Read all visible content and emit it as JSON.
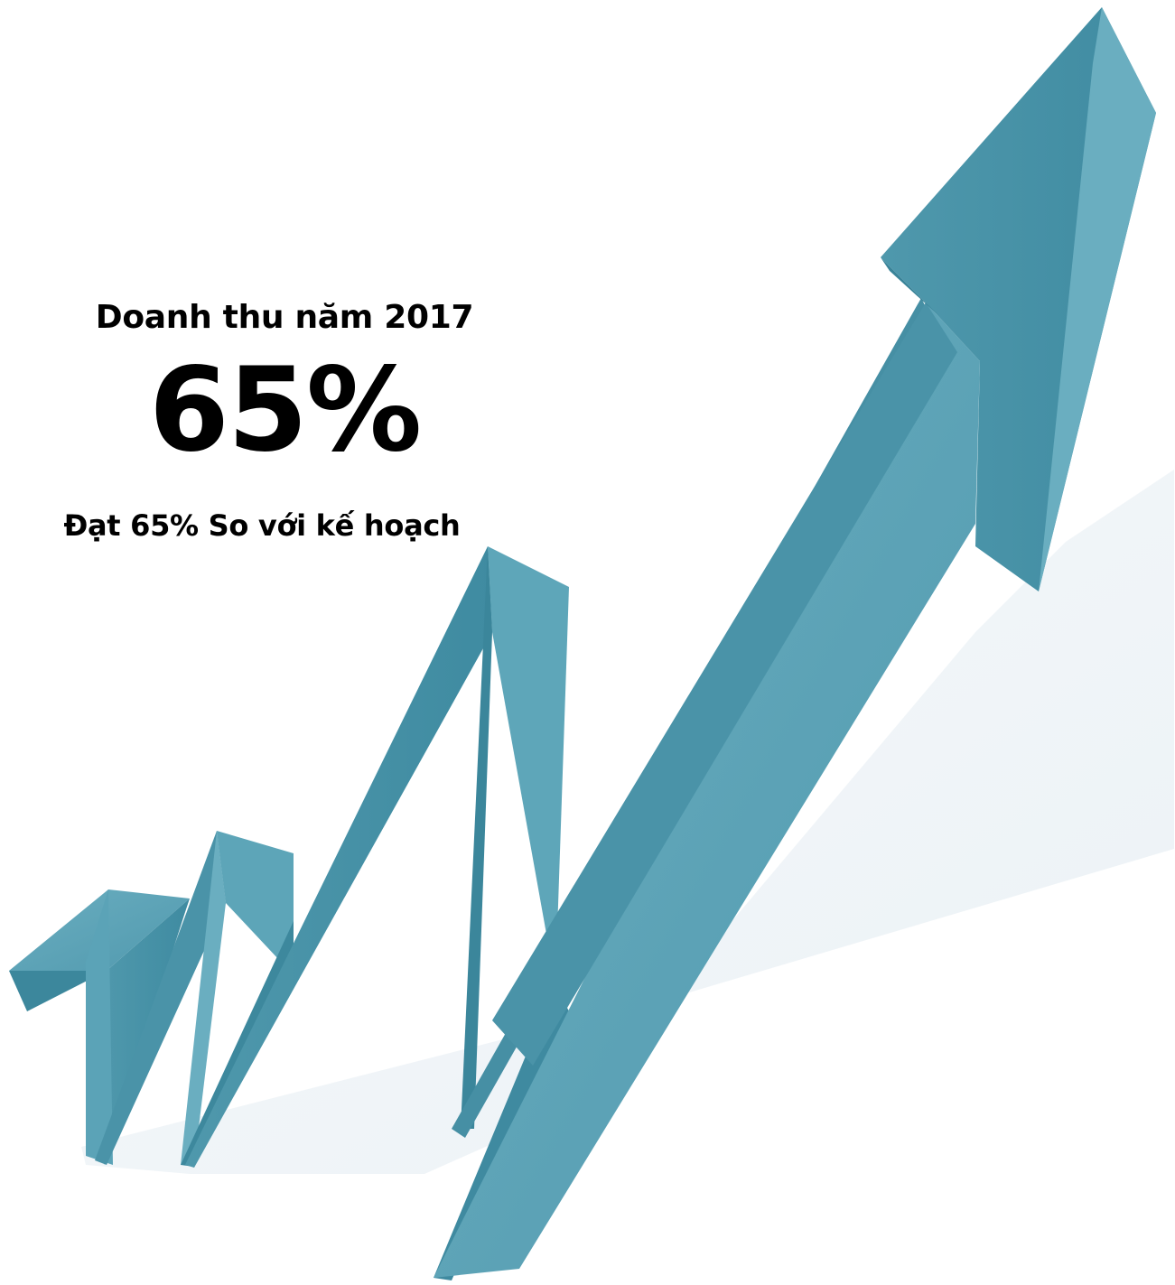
{
  "stat": {
    "title": "Doanh thu năm 2017",
    "value": "65%",
    "caption": "Đạt 65% So với kế hoạch"
  },
  "graphic": {
    "icon": "rising-zigzag-arrow-icon",
    "colors": {
      "arrow_top": "#4d97ab",
      "arrow_face": "#5ea7ba",
      "arrow_dark": "#3a8499",
      "shadow": "#eef3f7",
      "text": "#000000"
    }
  }
}
